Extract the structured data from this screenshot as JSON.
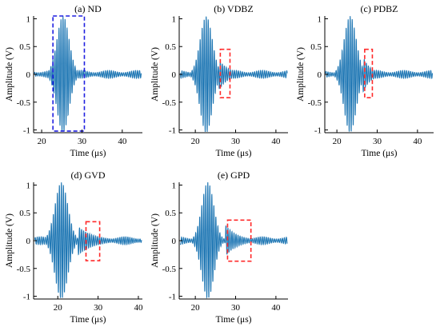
{
  "colors": {
    "signal": "#1f77b4",
    "box_ND": "#1f1fe0",
    "box_damage": "#ff2a2a"
  },
  "chart_data": [
    {
      "type": "line",
      "title": "(a) ND",
      "xlabel": "Time (μs)",
      "ylabel": "Amplitude (V)",
      "xlim": [
        18,
        45
      ],
      "ylim": [
        -1.05,
        1.05
      ],
      "xticks": [
        20,
        30,
        40
      ],
      "xtick_labels": [
        "20",
        "30",
        "40"
      ],
      "yticks": [
        -1,
        -0.5,
        0,
        0.5,
        1
      ],
      "ytick_labels": [
        "-1",
        "-0.5",
        "0",
        "0.5",
        "1"
      ],
      "signal": {
        "t0": 18.2,
        "t1": 44.7,
        "center": 25.3,
        "freq": 2.0,
        "sigma": 1.5,
        "peak": 1.05,
        "tail_start": 28.5,
        "tail_amp": 0.07,
        "tail_end": 37.5
      },
      "box": {
        "color": "blue",
        "x": [
          22.8,
          30.6
        ],
        "y": [
          -1.02,
          1.05
        ]
      }
    },
    {
      "type": "line",
      "title": "(b) VDBZ",
      "xlabel": "Time (μs)",
      "ylabel": "Amplitude (V)",
      "xlim": [
        16,
        43
      ],
      "ylim": [
        -1.05,
        1.05
      ],
      "xticks": [
        20,
        30,
        40
      ],
      "xtick_labels": [
        "20",
        "30",
        "40"
      ],
      "yticks": [
        -1,
        -0.5,
        0,
        0.5,
        1
      ],
      "ytick_labels": [
        "-1",
        "-0.5",
        "0",
        "0.5",
        "1"
      ],
      "signal": {
        "t0": 16.3,
        "t1": 42.8,
        "center": 22.7,
        "freq": 2.0,
        "sigma": 1.5,
        "peak": 1.05,
        "tail_start": 25.8,
        "tail_amp": 0.28,
        "tail_end": 31.0
      },
      "box": {
        "color": "red",
        "x": [
          26.2,
          28.6
        ],
        "y": [
          -0.42,
          0.45
        ]
      }
    },
    {
      "type": "line",
      "title": "(c) PDBZ",
      "xlabel": "Time (μs)",
      "ylabel": "Amplitude (V)",
      "xlim": [
        17,
        44
      ],
      "ylim": [
        -1.05,
        1.05
      ],
      "xticks": [
        20,
        30,
        40
      ],
      "xtick_labels": [
        "20",
        "30",
        "40"
      ],
      "yticks": [
        -1,
        -0.5,
        0,
        0.5,
        1
      ],
      "ytick_labels": [
        "-1",
        "-0.5",
        "0",
        "0.5",
        "1"
      ],
      "signal": {
        "t0": 17.2,
        "t1": 43.7,
        "center": 23.3,
        "freq": 2.0,
        "sigma": 1.5,
        "peak": 1.05,
        "tail_start": 26.5,
        "tail_amp": 0.32,
        "tail_end": 30.5
      },
      "box": {
        "color": "red",
        "x": [
          26.9,
          28.8
        ],
        "y": [
          -0.42,
          0.45
        ]
      }
    },
    {
      "type": "line",
      "title": "(d) GVD",
      "xlabel": "Time (μs)",
      "ylabel": "Amplitude (V)",
      "xlim": [
        14,
        41
      ],
      "ylim": [
        -1.05,
        1.05
      ],
      "xticks": [
        20,
        30,
        40
      ],
      "xtick_labels": [
        "20",
        "30",
        "40"
      ],
      "yticks": [
        -1,
        -0.5,
        0,
        0.5,
        1
      ],
      "ytick_labels": [
        "-1",
        "-0.5",
        "0",
        "0.5",
        "1"
      ],
      "signal": {
        "t0": 14.3,
        "t1": 40.8,
        "center": 20.9,
        "freq": 2.0,
        "sigma": 1.6,
        "peak": 1.05,
        "tail_start": 25.0,
        "tail_amp": 0.26,
        "tail_end": 33.5
      },
      "box": {
        "color": "red",
        "x": [
          27.0,
          30.4
        ],
        "y": [
          -0.36,
          0.34
        ]
      }
    },
    {
      "type": "line",
      "title": "(e) GPD",
      "xlabel": "Time (μs)",
      "ylabel": "Amplitude (V)",
      "xlim": [
        16,
        43
      ],
      "ylim": [
        -1.05,
        1.05
      ],
      "xticks": [
        20,
        30,
        40
      ],
      "xtick_labels": [
        "20",
        "30",
        "40"
      ],
      "yticks": [
        -1,
        -0.5,
        0,
        0.5,
        1
      ],
      "ytick_labels": [
        "-1",
        "-0.5",
        "0",
        "0.5",
        "1"
      ],
      "signal": {
        "t0": 16.3,
        "t1": 42.8,
        "center": 23.1,
        "freq": 2.0,
        "sigma": 1.5,
        "peak": 1.05,
        "tail_start": 27.5,
        "tail_amp": 0.28,
        "tail_end": 34.0
      },
      "box": {
        "color": "red",
        "x": [
          28.0,
          33.8
        ],
        "y": [
          -0.37,
          0.37
        ]
      }
    }
  ]
}
